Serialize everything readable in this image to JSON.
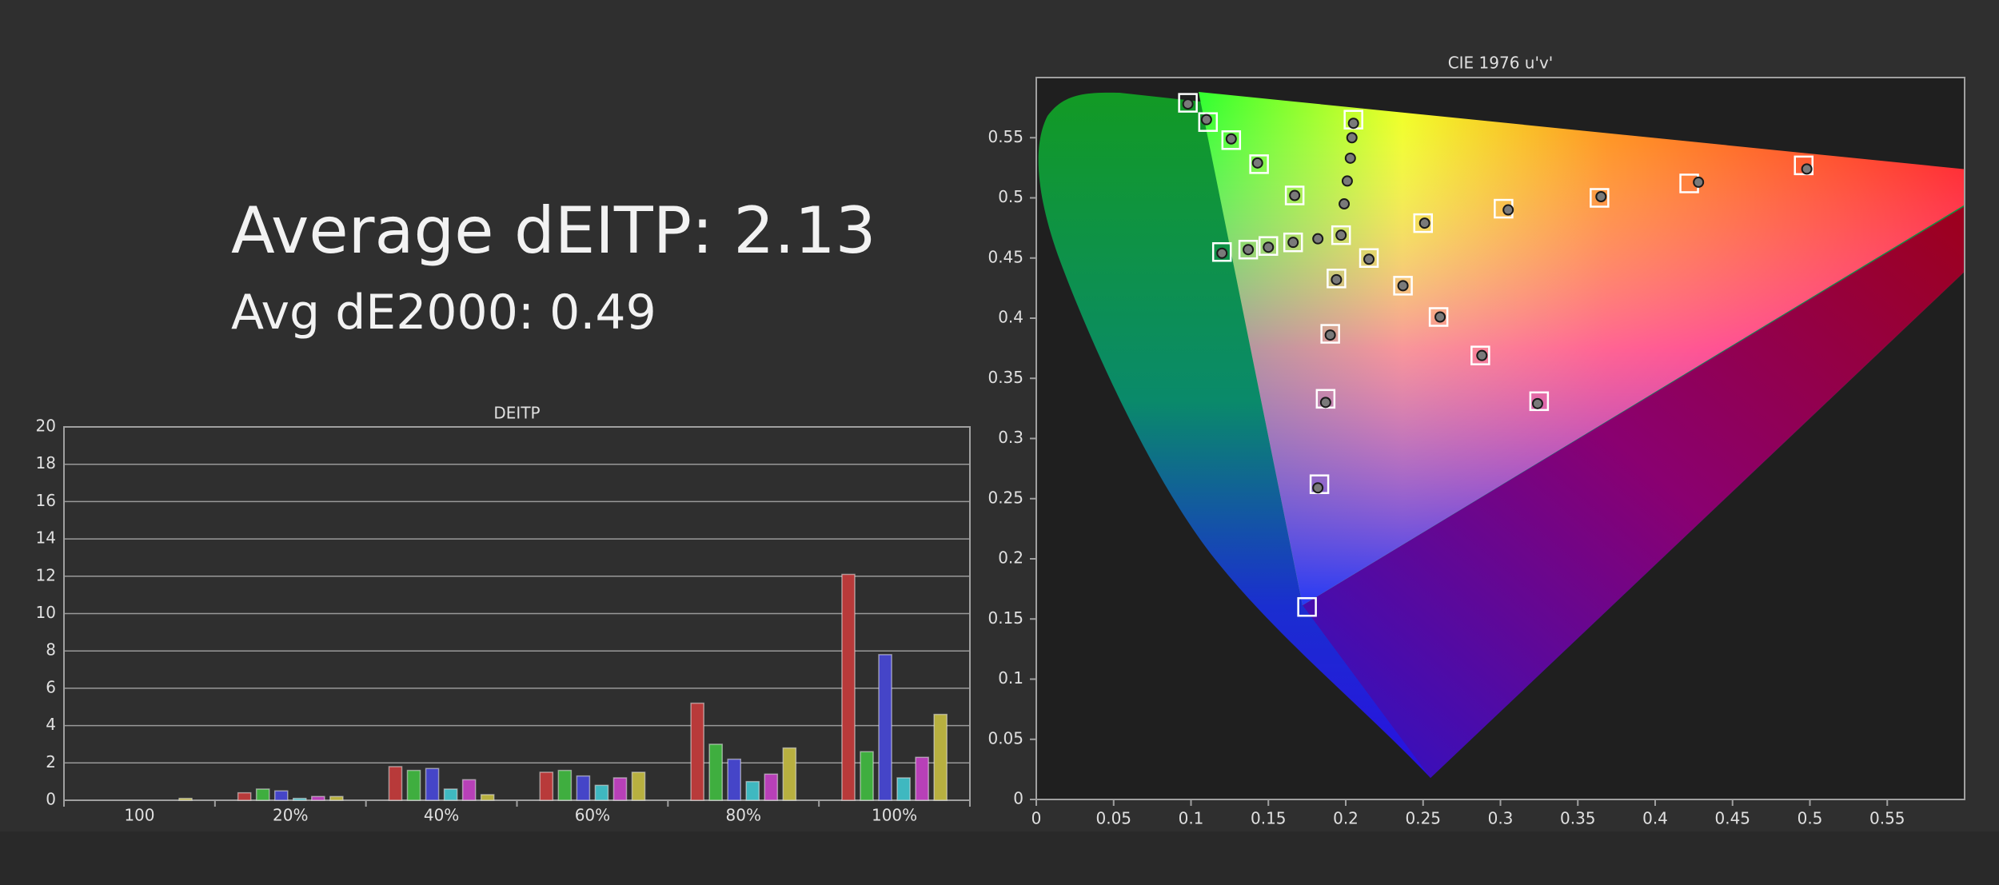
{
  "header": {
    "average_deitp": "Average dEITP: 2.13",
    "avg_de2000": "Avg dE2000: 0.49"
  },
  "chart_data": [
    {
      "type": "bar",
      "title": "DEITP",
      "categories": [
        "100",
        "20%",
        "40%",
        "60%",
        "80%",
        "100%"
      ],
      "series": [
        {
          "color": "#b83a3a",
          "values": [
            0,
            0.4,
            1.8,
            1.5,
            5.2,
            12.1
          ]
        },
        {
          "color": "#3fae3f",
          "values": [
            0,
            0.6,
            1.6,
            1.6,
            3.0,
            2.6
          ]
        },
        {
          "color": "#4545c8",
          "values": [
            0,
            0.5,
            1.7,
            1.3,
            2.2,
            7.8
          ]
        },
        {
          "color": "#3fb8c0",
          "values": [
            0,
            0.1,
            0.6,
            0.8,
            1.0,
            1.2
          ]
        },
        {
          "color": "#b840b8",
          "values": [
            0,
            0.2,
            1.1,
            1.2,
            1.4,
            2.3
          ]
        },
        {
          "color": "#b8b040",
          "values": [
            0.1,
            0.2,
            0.3,
            1.5,
            2.8,
            4.6
          ]
        }
      ],
      "ylim": [
        0,
        20
      ],
      "yticks": [
        0,
        2,
        4,
        6,
        8,
        10,
        12,
        14,
        16,
        18,
        20
      ],
      "grid": true
    },
    {
      "type": "scatter",
      "title": "CIE 1976 u'v'",
      "xlim": [
        0,
        0.6
      ],
      "ylim": [
        0,
        0.6
      ],
      "xticks": [
        0,
        0.05,
        0.1,
        0.15,
        0.2,
        0.25,
        0.3,
        0.35,
        0.4,
        0.45,
        0.5,
        0.55
      ],
      "yticks": [
        0,
        0.05,
        0.1,
        0.15,
        0.2,
        0.25,
        0.3,
        0.35,
        0.4,
        0.45,
        0.5,
        0.55
      ],
      "series": [
        {
          "marker": "square",
          "color": "#ffffff",
          "x": [
            0.098,
            0.111,
            0.126,
            0.144,
            0.167,
            0.205,
            0.197,
            0.12,
            0.137,
            0.15,
            0.166,
            0.194,
            0.19,
            0.187,
            0.183,
            0.175,
            0.25,
            0.302,
            0.364,
            0.422,
            0.496,
            0.26,
            0.287,
            0.325,
            0.237,
            0.215
          ],
          "y": [
            0.579,
            0.563,
            0.548,
            0.528,
            0.502,
            0.565,
            0.469,
            0.455,
            0.457,
            0.46,
            0.463,
            0.433,
            0.387,
            0.333,
            0.262,
            0.16,
            0.479,
            0.491,
            0.5,
            0.512,
            0.527,
            0.401,
            0.369,
            0.331,
            0.427,
            0.45
          ]
        },
        {
          "marker": "circle",
          "color": "#7a7a7a",
          "x": [
            0.098,
            0.11,
            0.126,
            0.143,
            0.167,
            0.205,
            0.204,
            0.203,
            0.201,
            0.199,
            0.197,
            0.182,
            0.166,
            0.15,
            0.137,
            0.12,
            0.194,
            0.19,
            0.187,
            0.182,
            0.215,
            0.237,
            0.261,
            0.288,
            0.324,
            0.251,
            0.305,
            0.365,
            0.428,
            0.498
          ],
          "y": [
            0.578,
            0.565,
            0.549,
            0.529,
            0.502,
            0.562,
            0.55,
            0.533,
            0.514,
            0.495,
            0.469,
            0.466,
            0.463,
            0.459,
            0.457,
            0.454,
            0.432,
            0.386,
            0.33,
            0.259,
            0.449,
            0.427,
            0.401,
            0.369,
            0.329,
            0.479,
            0.49,
            0.501,
            0.513,
            0.524
          ]
        }
      ]
    }
  ]
}
